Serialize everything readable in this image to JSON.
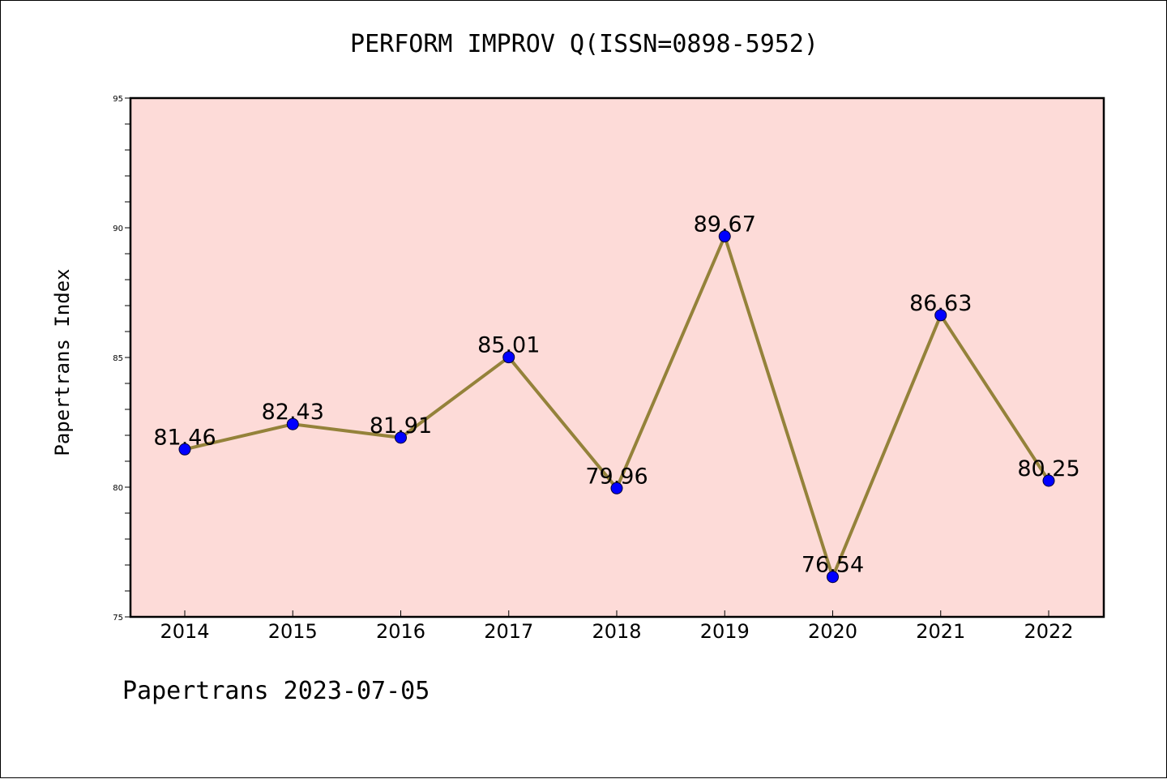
{
  "header": {
    "title": "PERFORM IMPROV Q(ISSN=0898-5952)"
  },
  "footer": {
    "text": "Papertrans 2023-07-05"
  },
  "colors": {
    "plot_background": "#fddbd8",
    "line": "#94823a",
    "marker": "#0000ff"
  },
  "chart_data": {
    "type": "line",
    "title": "PERFORM IMPROV Q(ISSN=0898-5952)",
    "xlabel": "",
    "ylabel": "Papertrans Index",
    "categories": [
      "2014",
      "2015",
      "2016",
      "2017",
      "2018",
      "2019",
      "2020",
      "2021",
      "2022"
    ],
    "series": [
      {
        "values": [
          81.46,
          82.43,
          81.91,
          85.01,
          79.96,
          89.67,
          76.54,
          86.63,
          80.25
        ],
        "labels": [
          "81.46",
          "82.43",
          "81.91",
          "85.01",
          "79.96",
          "89.67",
          "76.54",
          "86.63",
          "80.25"
        ]
      }
    ],
    "ylim": [
      75,
      95
    ],
    "yticks": [
      "75",
      "80",
      "85",
      "90",
      "95"
    ],
    "grid": false,
    "legend": "none"
  }
}
